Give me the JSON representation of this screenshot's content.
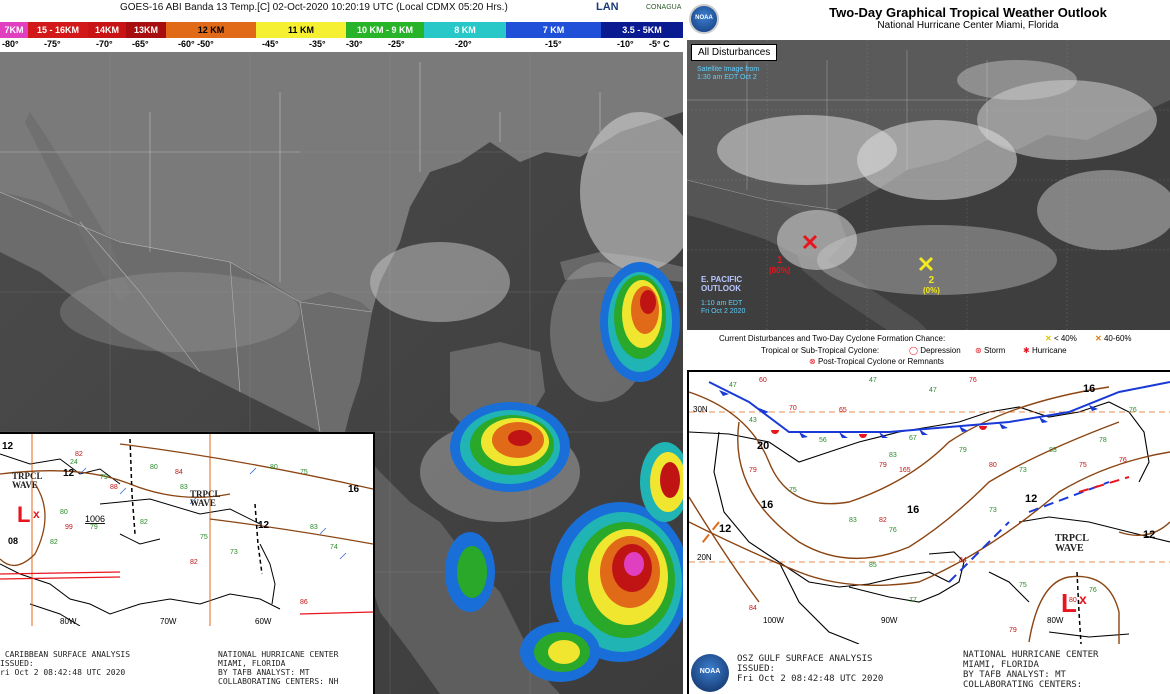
{
  "goes": {
    "title": "GOES-16 ABI Banda 13 Temp.[C] 02-Oct-2020 10:20:19 UTC (Local CDMX  05:20 Hrs.)",
    "logos": {
      "lan": "LAN",
      "conagua": "CONAGUA"
    },
    "colorbar": [
      {
        "label": "7KM",
        "color": "#e040c0",
        "text": "#ffffff"
      },
      {
        "label": "15 - 16KM",
        "color": "#d21818",
        "text": "#ffffff"
      },
      {
        "label": "14KM",
        "color": "#c81414",
        "text": "#ffffff"
      },
      {
        "label": "13KM",
        "color": "#a80e0e",
        "text": "#ffffff"
      },
      {
        "label": "12 KM",
        "color": "#e06a18",
        "text": "#000000"
      },
      {
        "label": "11 KM",
        "color": "#f6f032",
        "text": "#000000"
      },
      {
        "label": "10 KM - 9 KM",
        "color": "#28b428",
        "text": "#ffffff"
      },
      {
        "label": "8 KM",
        "color": "#28c8c8",
        "text": "#ffffff"
      },
      {
        "label": "7 KM",
        "color": "#2050d8",
        "text": "#ffffff"
      },
      {
        "label": "3.5 - 5KM",
        "color": "#0a1a90",
        "text": "#ffffff"
      }
    ],
    "temps": [
      "-80°",
      "-75°",
      "-70°",
      "-65°",
      "-60° -50°",
      "-45°",
      "-35°",
      "-30°",
      "-25°",
      "-20°",
      "-15°",
      "-10°",
      "-5° C"
    ]
  },
  "caribbean": {
    "labels": {
      "trpcl_wave_1": "TRPCL\nWAVE",
      "trpcl_wave_2": "TRPCL\nWAVE",
      "isobar_12a": "12",
      "isobar_12b": "12",
      "isobar_16": "16",
      "isobar_12c": "12",
      "low_pressure": "1006",
      "low_pressure_2": "08",
      "lon_80w": "80W",
      "lon_70w": "70W",
      "lon_60w": "60W"
    },
    "footer_left": " CARIBBEAN SURFACE ANALYSIS\nISSUED:\nri Oct 2 08:42:48 UTC 2020",
    "footer_right": "NATIONAL HURRICANE CENTER\nMIAMI, FLORIDA\nBY TAFB ANALYST: MT\nCOLLABORATING CENTERS: NH"
  },
  "outlook": {
    "logo": "NOAA",
    "title": "Two-Day Graphical Tropical Weather Outlook",
    "subtitle": "National Hurricane Center  Miami, Florida",
    "all_disturbances": "All Disturbances",
    "sat_note": "Satellite Image from\n1:30 am EDT Oct 2",
    "epac_label": "E. PACIFIC\nOUTLOOK",
    "epac_time": "1:10 am EDT\nFri Oct 2 2020",
    "disturbances": [
      {
        "id": "1",
        "chance": "(80%)",
        "color": "#e8141e"
      },
      {
        "id": "2",
        "chance": "(0%)",
        "color": "#f2e820"
      }
    ],
    "legend": {
      "line1": "Current Disturbances and Two-Day Cyclone Formation Chance:",
      "lt40": "< 40%",
      "mid": "40-60%",
      "line2": "Tropical or Sub-Tropical Cyclone:",
      "depression": "Depression",
      "storm": "Storm",
      "hurricane": "Hurricane",
      "post": "Post-Tropical Cyclone or Remnants"
    }
  },
  "gulf": {
    "labels": {
      "isobar_16_top": "16",
      "isobar_20": "20",
      "isobar_16_left": "16",
      "isobar_16_mid": "16",
      "isobar_12_left": "12",
      "isobar_12_right": "12",
      "isobar_12_far": "12",
      "lat_30n": "30N",
      "lat_20n": "20N",
      "lon_100w": "100W",
      "lon_90w": "90W",
      "lon_80w": "80W",
      "trpcl_wave": "TRPCL\nWAVE"
    },
    "footer_left": "OSZ GULF SURFACE ANALYSIS\nISSUED:\nFri Oct 2 08:42:48 UTC 2020",
    "footer_right": "NATIONAL HURRICANE CENTER\nMIAMI, FLORIDA\nBY TAFB ANALYST: MT\nCOLLABORATING CENTERS:",
    "logo": "NOAA"
  }
}
